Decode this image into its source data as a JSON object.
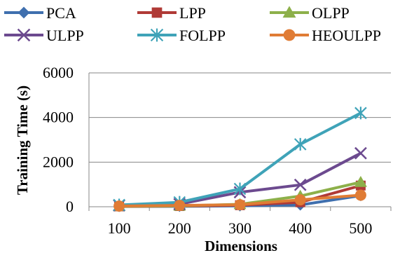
{
  "chart_data": {
    "type": "line",
    "title": "",
    "xlabel": "Dimensions",
    "ylabel": "Training Time (s)",
    "categories": [
      "100",
      "200",
      "300",
      "400",
      "500"
    ],
    "ylim": [
      0,
      6000
    ],
    "yticks": [
      "0",
      "2000",
      "4000",
      "6000"
    ],
    "grid": "horizontal",
    "legend_position": "top",
    "series": [
      {
        "name": "PCA",
        "color": "#3f6fae",
        "marker": "diamond",
        "values": [
          10,
          20,
          40,
          80,
          500
        ]
      },
      {
        "name": "LPP",
        "color": "#b03a36",
        "marker": "square",
        "values": [
          15,
          30,
          70,
          200,
          950
        ]
      },
      {
        "name": "OLPP",
        "color": "#8db04a",
        "marker": "triangle",
        "values": [
          20,
          40,
          110,
          480,
          1100
        ]
      },
      {
        "name": "ULPP",
        "color": "#6c4a8f",
        "marker": "x",
        "values": [
          60,
          120,
          650,
          980,
          2400
        ]
      },
      {
        "name": "FOLPP",
        "color": "#3fa3b8",
        "marker": "star",
        "values": [
          80,
          200,
          800,
          2800,
          4200
        ]
      },
      {
        "name": "HEOULPP",
        "color": "#e07c35",
        "marker": "circle",
        "values": [
          30,
          60,
          90,
          310,
          520
        ]
      }
    ]
  }
}
